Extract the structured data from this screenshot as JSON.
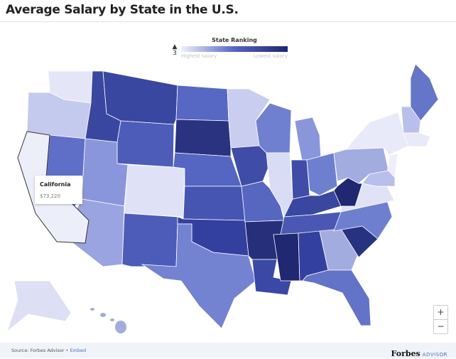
{
  "header": {
    "title": "Average Salary by State in the U.S."
  },
  "legend": {
    "title": "State Ranking",
    "low_label": "Highest salary",
    "high_label": "Lowest salary",
    "marker_value": "3"
  },
  "tooltip": {
    "state": "California",
    "value": "$73,220"
  },
  "zoom": {
    "in": "+",
    "out": "−"
  },
  "footer": {
    "source": "Source: Forbes Advisor",
    "separator": " • ",
    "embed": "Embed",
    "brand": "Forbes",
    "brand_sub": "ADVISOR"
  },
  "state_colors": {
    "WA": "#e4e6f7",
    "OR": "#c4c9ee",
    "CA": "#eceefa",
    "NV": "#5f6fc8",
    "ID": "#3a47a0",
    "MT": "#3a47a0",
    "WY": "#4d5cb8",
    "UT": "#8a96dc",
    "AZ": "#9aa4e0",
    "CO": "#dfe2f7",
    "NM": "#4d5cb8",
    "ND": "#5767c4",
    "SD": "#2a3380",
    "NE": "#5565c2",
    "KS": "#4655b2",
    "OK": "#3440a0",
    "TX": "#7383d2",
    "MN": "#c9cdef",
    "IA": "#3f4da8",
    "MO": "#5767c0",
    "AR": "#26307a",
    "LA": "#3b48a6",
    "WI": "#7080d0",
    "IL": "#d8dcf5",
    "MI": "#8a96dc",
    "IN": "#3f4da8",
    "OH": "#6f7fd0",
    "KY": "#3a47a0",
    "TN": "#4a58b4",
    "MS": "#1f2870",
    "AL": "#3440a0",
    "GA": "#a3acdf",
    "FL": "#6373c8",
    "SC": "#273280",
    "NC": "#6f7fd0",
    "VA": "#e0e3f7",
    "WV": "#1f2870",
    "PA": "#a3acdf",
    "NY": "#e8eafa",
    "ME": "#6575c8",
    "NH": "#b8bfea",
    "MA": "#e8eafa",
    "NJ": "#eeeffb",
    "MD": "#b8bfea",
    "AK": "#dde0f5",
    "HI": "#a3acdf"
  }
}
